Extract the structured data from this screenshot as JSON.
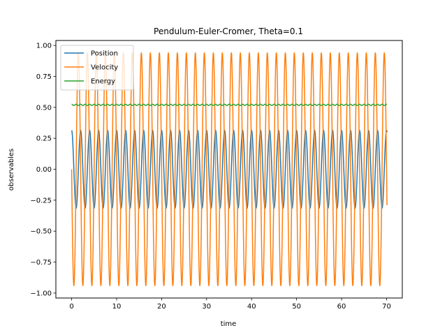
{
  "chart_data": {
    "type": "line",
    "title": "Pendulum-Euler-Cromer, Theta=0.1",
    "xlabel": "time",
    "ylabel": "observables",
    "xlim": [
      -3.5,
      73.5
    ],
    "ylim": [
      -1.04,
      1.04
    ],
    "xticks": [
      0,
      10,
      20,
      30,
      40,
      50,
      60,
      70
    ],
    "yticks": [
      -1.0,
      -0.75,
      -0.5,
      -0.25,
      0.0,
      0.25,
      0.5,
      0.75,
      1.0
    ],
    "xtick_labels": [
      "0",
      "10",
      "20",
      "30",
      "40",
      "50",
      "60",
      "70"
    ],
    "ytick_labels": [
      "−1.00",
      "−0.75",
      "−0.50",
      "−0.25",
      "0.00",
      "0.25",
      "0.50",
      "0.75",
      "1.00"
    ],
    "legend_position": "top-left",
    "grid": false,
    "x_range": [
      0,
      70.1
    ],
    "period": 2.0,
    "series": [
      {
        "name": "Position",
        "color": "#1f77b4",
        "kind": "cos",
        "amplitude": 0.314,
        "mean": 0.0
      },
      {
        "name": "Velocity",
        "color": "#ff7f0e",
        "kind": "neg-sin",
        "amplitude": 0.94,
        "mean": 0.0
      },
      {
        "name": "Energy",
        "color": "#2ca02c",
        "kind": "ripple",
        "amplitude": 0.005,
        "mean": 0.52
      }
    ]
  }
}
